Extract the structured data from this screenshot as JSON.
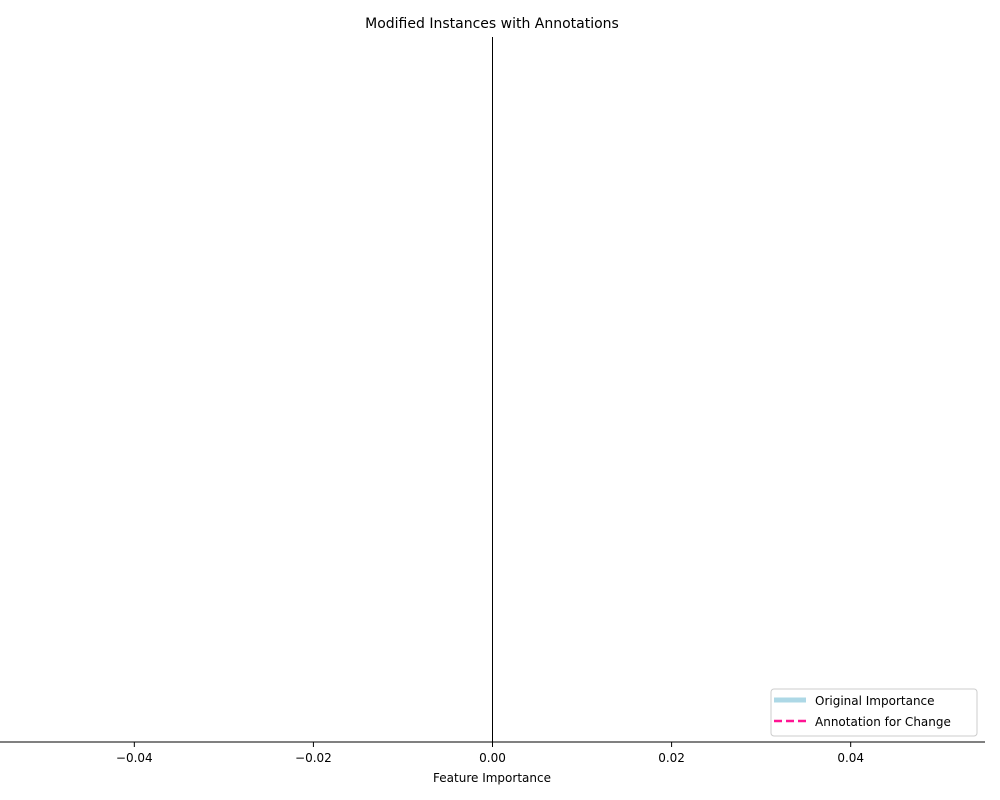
{
  "chart_data": {
    "type": "bar",
    "orientation": "horizontal",
    "title": "Modified Instances with Annotations",
    "xlabel": "Feature Importance",
    "ylabel": "",
    "xlim": [
      -0.055,
      0.055
    ],
    "xticks": [
      -0.04,
      -0.02,
      0.0,
      0.02,
      0.04
    ],
    "xtick_labels": [
      "−0.04",
      "−0.02",
      "0.00",
      "0.02",
      "0.04"
    ],
    "categories": [],
    "series": [
      {
        "name": "Original Importance",
        "values": [],
        "color": "#add8e6",
        "style": "solid"
      },
      {
        "name": "Annotation for Change",
        "values": [],
        "color": "#ff1493",
        "style": "dashed"
      }
    ],
    "reference_line_x": 0.0,
    "grid": false,
    "legend_position": "bottom-right"
  }
}
